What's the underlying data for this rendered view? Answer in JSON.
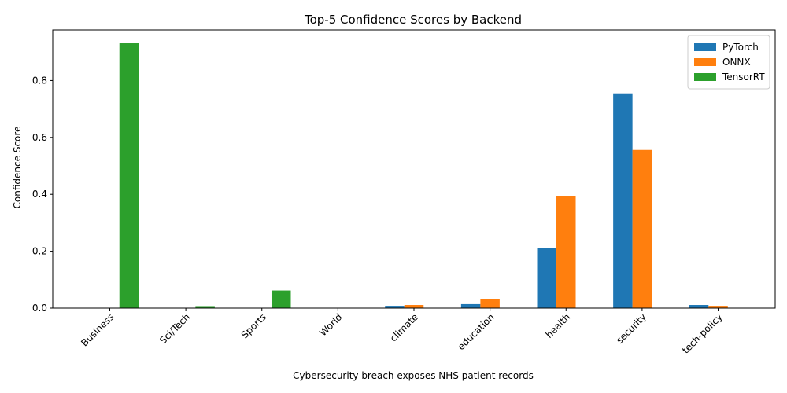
{
  "chart_data": {
    "type": "bar",
    "title": "Top-5 Confidence Scores by Backend",
    "xlabel": "Cybersecurity breach exposes NHS patient records",
    "ylabel": "Confidence Score",
    "categories": [
      "Business",
      "Sci/Tech",
      "Sports",
      "World",
      "climate",
      "education",
      "health",
      "security",
      "tech-policy"
    ],
    "series": [
      {
        "name": "PyTorch",
        "color": "#1f77b4",
        "values": [
          0,
          0,
          0,
          0,
          0.008,
          0.014,
          0.212,
          0.755,
          0.011
        ]
      },
      {
        "name": "ONNX",
        "color": "#ff7f0e",
        "values": [
          0,
          0,
          0,
          0,
          0.011,
          0.031,
          0.394,
          0.556,
          0.008
        ]
      },
      {
        "name": "TensorRT",
        "color": "#2ca02c",
        "values": [
          0.931,
          0.007,
          0.062,
          0,
          0,
          0,
          0,
          0,
          0
        ]
      }
    ],
    "yticks": [
      "0.0",
      "0.2",
      "0.4",
      "0.6",
      "0.8"
    ],
    "ylim": [
      0,
      0.978
    ],
    "grid": false,
    "legend": "top-right"
  }
}
